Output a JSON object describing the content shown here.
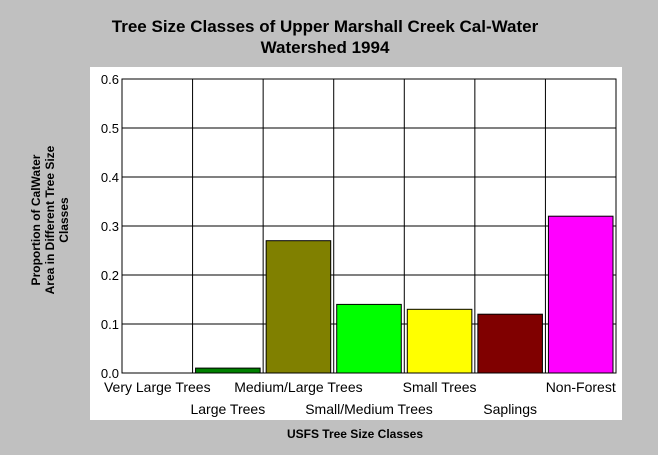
{
  "chart_data": {
    "type": "bar",
    "title_line1": "Tree Size Classes of Upper Marshall Creek Cal-Water",
    "title_line2": "Watershed 1994",
    "xlabel": "USFS Tree Size Classes",
    "ylabel_line1": "Proportion of CalWater",
    "ylabel_line2": "Area in Different Tree Size",
    "ylabel_line3": "Classes",
    "categories": [
      "Very Large Trees",
      "Large Trees",
      "Medium/Large Trees",
      "Small/Medium Trees",
      "Small Trees",
      "Saplings",
      "Non-Forest"
    ],
    "values": [
      0.0,
      0.01,
      0.27,
      0.14,
      0.13,
      0.12,
      0.32
    ],
    "colors": [
      "#008000",
      "#008000",
      "#808000",
      "#00ff00",
      "#ffff00",
      "#800000",
      "#ff00ff"
    ],
    "ylim": [
      0,
      0.6
    ],
    "yticks": [
      "0.0",
      "0.1",
      "0.2",
      "0.3",
      "0.4",
      "0.5",
      "0.6"
    ],
    "grid": true,
    "background": "#c0c0c0",
    "plot_background": "#ffffff"
  }
}
